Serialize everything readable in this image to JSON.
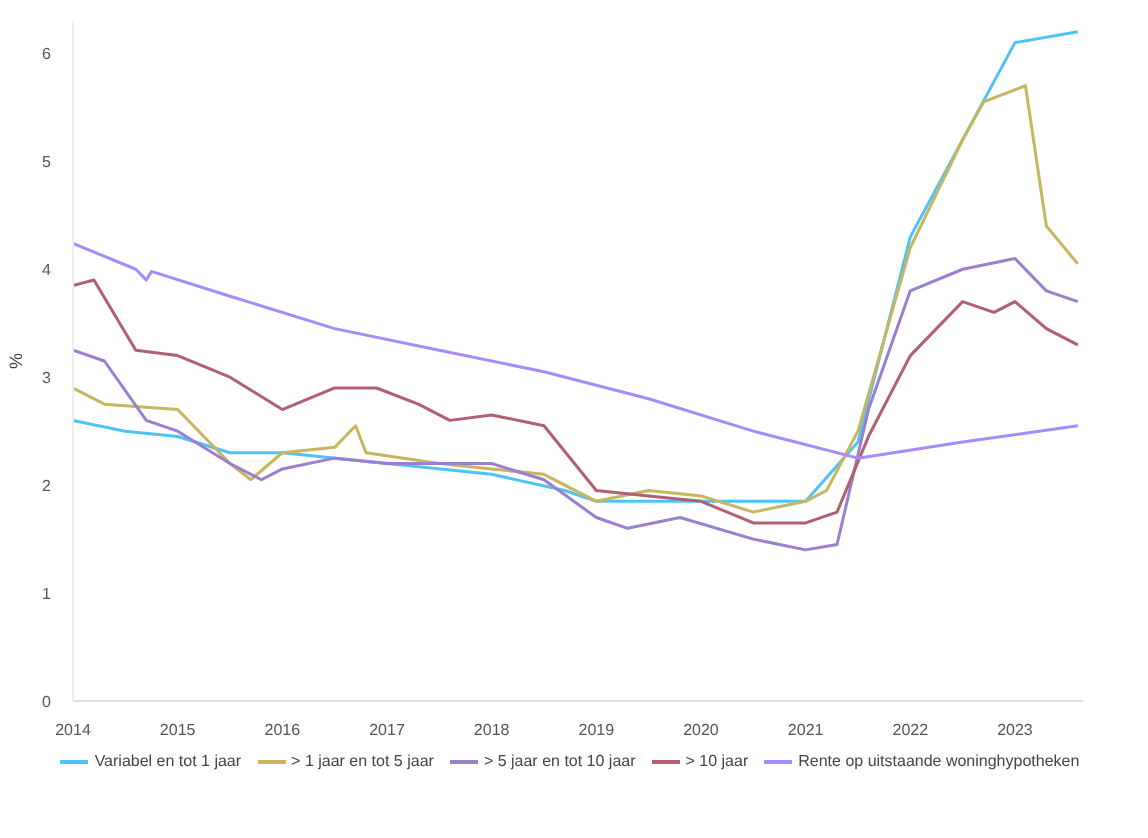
{
  "chart_data": {
    "type": "line",
    "ylabel": "%",
    "xlim": [
      2014,
      2023.65
    ],
    "xticks": [
      2014,
      2015,
      2016,
      2017,
      2018,
      2019,
      2020,
      2021,
      2022,
      2023
    ],
    "ylim": [
      0,
      6.3
    ],
    "yticks": [
      0,
      1,
      2,
      3,
      4,
      5,
      6
    ],
    "grid": false,
    "legend": "bottom",
    "line_style": "solid",
    "marker": "none",
    "series": [
      {
        "name": "Variabel en tot 1 jaar",
        "color": "#4fc3f7",
        "x": [
          2014,
          2014.5,
          2015,
          2015.5,
          2016,
          2017,
          2018,
          2018.7,
          2019,
          2020,
          2021,
          2021.5,
          2022,
          2022.5,
          2023,
          2023.6
        ],
        "values": [
          2.6,
          2.5,
          2.45,
          2.3,
          2.3,
          2.2,
          2.1,
          1.95,
          1.85,
          1.85,
          1.85,
          2.4,
          4.3,
          5.2,
          6.1,
          6.2
        ]
      },
      {
        "name": "> 1 jaar en tot 5 jaar",
        "color": "#c8b560",
        "x": [
          2014,
          2014.3,
          2015,
          2015.5,
          2015.7,
          2016,
          2016.5,
          2016.7,
          2016.8,
          2017.5,
          2018,
          2018.5,
          2019,
          2019.5,
          2020,
          2020.5,
          2021,
          2021.2,
          2021.5,
          2022,
          2022.5,
          2022.7,
          2023.1,
          2023.3,
          2023.6
        ],
        "values": [
          2.9,
          2.75,
          2.7,
          2.2,
          2.05,
          2.3,
          2.35,
          2.55,
          2.3,
          2.2,
          2.15,
          2.1,
          1.85,
          1.95,
          1.9,
          1.75,
          1.85,
          1.95,
          2.5,
          4.2,
          5.2,
          5.55,
          5.7,
          4.4,
          4.05
        ]
      },
      {
        "name": "> 5 jaar en tot 10 jaar",
        "color": "#9b7fcf",
        "x": [
          2014,
          2014.3,
          2014.7,
          2015,
          2015.5,
          2015.8,
          2016,
          2016.5,
          2017,
          2018,
          2018.5,
          2019,
          2019.3,
          2019.8,
          2020.5,
          2021,
          2021.3,
          2021.6,
          2022,
          2022.5,
          2023,
          2023.3,
          2023.6
        ],
        "values": [
          3.25,
          3.15,
          2.6,
          2.5,
          2.2,
          2.05,
          2.15,
          2.25,
          2.2,
          2.2,
          2.05,
          1.7,
          1.6,
          1.7,
          1.5,
          1.4,
          1.45,
          2.7,
          3.8,
          4.0,
          4.1,
          3.8,
          3.7
        ]
      },
      {
        "name": "> 10 jaar",
        "color": "#b06070",
        "x": [
          2014,
          2014.2,
          2014.6,
          2015,
          2015.5,
          2016,
          2016.5,
          2016.9,
          2017.3,
          2017.6,
          2018,
          2018.5,
          2019,
          2019.5,
          2020,
          2020.5,
          2021,
          2021.3,
          2021.6,
          2022,
          2022.5,
          2022.8,
          2023,
          2023.3,
          2023.6
        ],
        "values": [
          3.85,
          3.9,
          3.25,
          3.2,
          3.0,
          2.7,
          2.9,
          2.9,
          2.75,
          2.6,
          2.65,
          2.55,
          1.95,
          1.9,
          1.85,
          1.65,
          1.65,
          1.75,
          2.45,
          3.2,
          3.7,
          3.6,
          3.7,
          3.45,
          3.3
        ]
      },
      {
        "name": "Rente op uitstaande woninghypotheken",
        "color": "#a78bfa",
        "x": [
          2014,
          2014.6,
          2014.7,
          2014.75,
          2015.5,
          2016.5,
          2017.5,
          2018.5,
          2019.5,
          2020.5,
          2021.5,
          2022.5,
          2023.6
        ],
        "values": [
          4.24,
          4.0,
          3.9,
          3.98,
          3.75,
          3.45,
          3.25,
          3.05,
          2.8,
          2.5,
          2.25,
          2.4,
          2.55
        ]
      }
    ]
  }
}
